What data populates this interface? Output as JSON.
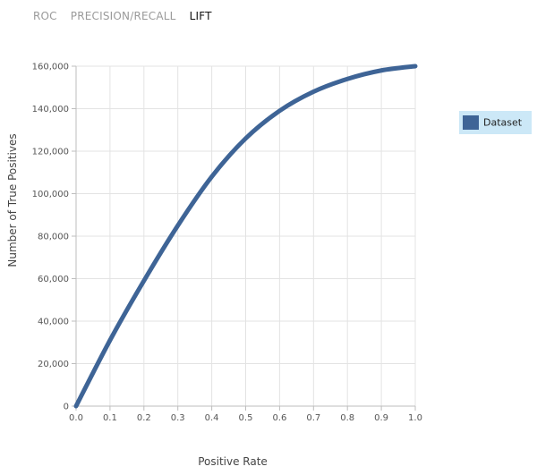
{
  "tabs": [
    {
      "label": "ROC",
      "active": false
    },
    {
      "label": "PRECISION/RECALL",
      "active": false
    },
    {
      "label": "LIFT",
      "active": true
    }
  ],
  "chart_data": {
    "type": "line",
    "xlabel": "Positive Rate",
    "ylabel": "Number of True Positives",
    "xlim": [
      0,
      1
    ],
    "ylim": [
      0,
      160000
    ],
    "x_ticks": [
      "0.0",
      "0.1",
      "0.2",
      "0.3",
      "0.4",
      "0.5",
      "0.6",
      "0.7",
      "0.8",
      "0.9",
      "1.0"
    ],
    "y_ticks": [
      "0",
      "20,000",
      "40,000",
      "60,000",
      "80,000",
      "100,000",
      "120,000",
      "140,000",
      "160,000"
    ],
    "grid": true,
    "legend_position": "right",
    "series": [
      {
        "name": "Dataset",
        "color": "#3e6496",
        "x": [
          0.0,
          0.1,
          0.2,
          0.3,
          0.4,
          0.5,
          0.6,
          0.7,
          0.8,
          0.9,
          1.0
        ],
        "y": [
          0,
          31000,
          59000,
          85000,
          108000,
          126000,
          139000,
          148000,
          154000,
          158000,
          160000
        ]
      }
    ]
  }
}
